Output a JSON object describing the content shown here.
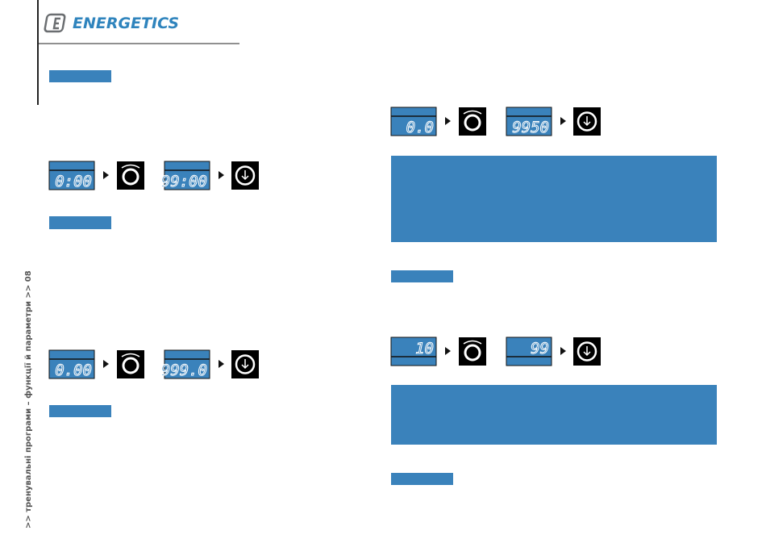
{
  "header": {
    "logo": "ENERGETICS"
  },
  "sidebar": {
    "text": ">> тренувальні програми – функції й параметри >> 08"
  },
  "displays": [
    {
      "from": "0:00",
      "to": "99:00"
    },
    {
      "from": "0.00",
      "to": "999.0"
    },
    {
      "from": "0.0",
      "to": "9950"
    },
    {
      "from": "10",
      "to": "99"
    }
  ]
}
